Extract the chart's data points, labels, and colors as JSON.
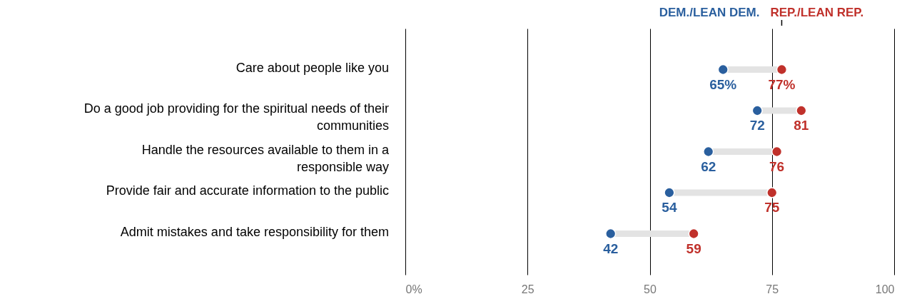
{
  "chart_data": {
    "type": "scatter",
    "orientation": "horizontal",
    "categories": [
      "Care about people like you",
      "Do a good job providing for the spiritual needs of their\ncommunities",
      "Handle the resources available to them in a\nresponsible way",
      "Provide fair and accurate information to the public",
      "Admit mistakes and take responsibility for them"
    ],
    "series": [
      {
        "name": "DEM./LEAN DEM.",
        "color": "#2a5f9e",
        "values": [
          65,
          72,
          62,
          54,
          42
        ],
        "value_labels": [
          "65%",
          "72",
          "62",
          "54",
          "42"
        ]
      },
      {
        "name": "REP./LEAN REP.",
        "color": "#c0312b",
        "values": [
          77,
          81,
          76,
          75,
          59
        ],
        "value_labels": [
          "77%",
          "81",
          "76",
          "75",
          "59"
        ]
      }
    ],
    "xlim": [
      0,
      100
    ],
    "xticks": [
      {
        "value": 0,
        "label": "0%"
      },
      25,
      50,
      75,
      100
    ],
    "grid": "x",
    "legend": "top right",
    "marker": "circle"
  }
}
